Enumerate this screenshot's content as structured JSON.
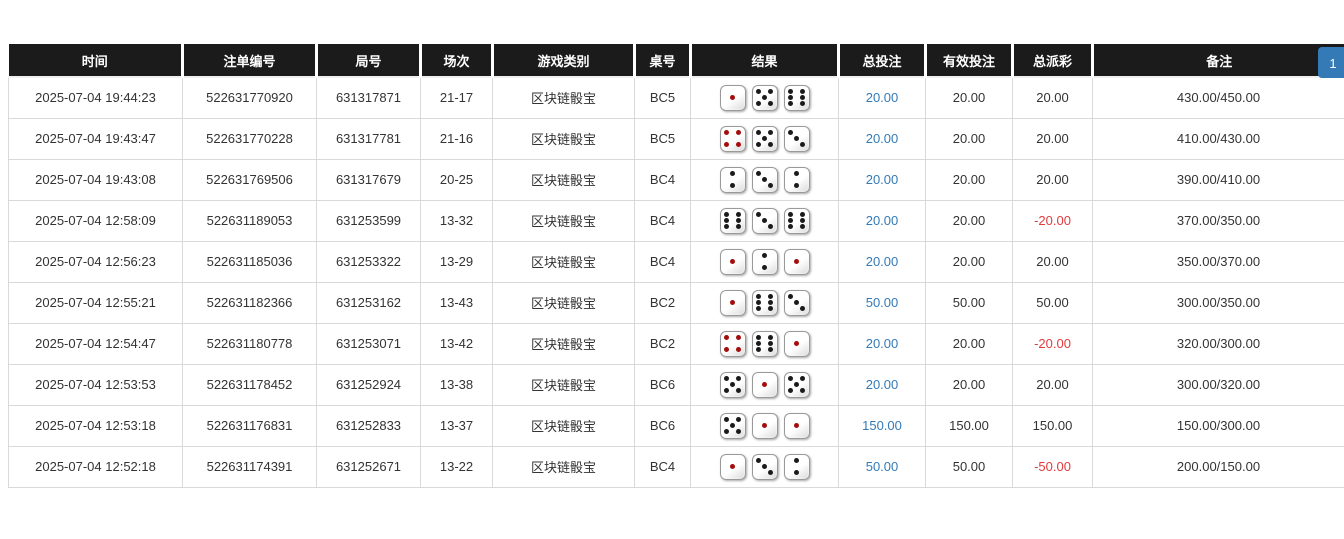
{
  "pagination": {
    "current_page": "1"
  },
  "colors": {
    "header_bg": "#1b1b1b",
    "bet_link_blue": "#337ab7",
    "negative_red": "#e23b3e",
    "dice_red_pip": "#a50d0d",
    "pagination_blue": "#337ab7"
  },
  "icons": {
    "dice_icons": "dice-face icons, values 1-6, pips red for 1 and 4, black otherwise"
  },
  "table": {
    "headers": {
      "time": "时间",
      "bet_id": "注单编号",
      "round": "局号",
      "session": "场次",
      "game": "游戏类别",
      "table_no": "桌号",
      "result": "结果",
      "total_bet": "总投注",
      "valid_bet": "有效投注",
      "payout": "总派彩",
      "remark": "备注"
    },
    "rows": [
      {
        "time": "2025-07-04 19:44:23",
        "bet_id": "522631770920",
        "round": "631317871",
        "session": "21-17",
        "game": "区块链骰宝",
        "table_no": "BC5",
        "dice": [
          1,
          5,
          6
        ],
        "total_bet": "20.00",
        "valid_bet": "20.00",
        "payout": "20.00",
        "remark": "430.00/450.00"
      },
      {
        "time": "2025-07-04 19:43:47",
        "bet_id": "522631770228",
        "round": "631317781",
        "session": "21-16",
        "game": "区块链骰宝",
        "table_no": "BC5",
        "dice": [
          4,
          5,
          3
        ],
        "total_bet": "20.00",
        "valid_bet": "20.00",
        "payout": "20.00",
        "remark": "410.00/430.00"
      },
      {
        "time": "2025-07-04 19:43:08",
        "bet_id": "522631769506",
        "round": "631317679",
        "session": "20-25",
        "game": "区块链骰宝",
        "table_no": "BC4",
        "dice": [
          2,
          3,
          2
        ],
        "total_bet": "20.00",
        "valid_bet": "20.00",
        "payout": "20.00",
        "remark": "390.00/410.00"
      },
      {
        "time": "2025-07-04 12:58:09",
        "bet_id": "522631189053",
        "round": "631253599",
        "session": "13-32",
        "game": "区块链骰宝",
        "table_no": "BC4",
        "dice": [
          6,
          3,
          6
        ],
        "total_bet": "20.00",
        "valid_bet": "20.00",
        "payout": "-20.00",
        "remark": "370.00/350.00"
      },
      {
        "time": "2025-07-04 12:56:23",
        "bet_id": "522631185036",
        "round": "631253322",
        "session": "13-29",
        "game": "区块链骰宝",
        "table_no": "BC4",
        "dice": [
          1,
          2,
          1
        ],
        "total_bet": "20.00",
        "valid_bet": "20.00",
        "payout": "20.00",
        "remark": "350.00/370.00"
      },
      {
        "time": "2025-07-04 12:55:21",
        "bet_id": "522631182366",
        "round": "631253162",
        "session": "13-43",
        "game": "区块链骰宝",
        "table_no": "BC2",
        "dice": [
          1,
          6,
          3
        ],
        "total_bet": "50.00",
        "valid_bet": "50.00",
        "payout": "50.00",
        "remark": "300.00/350.00"
      },
      {
        "time": "2025-07-04 12:54:47",
        "bet_id": "522631180778",
        "round": "631253071",
        "session": "13-42",
        "game": "区块链骰宝",
        "table_no": "BC2",
        "dice": [
          4,
          6,
          1
        ],
        "total_bet": "20.00",
        "valid_bet": "20.00",
        "payout": "-20.00",
        "remark": "320.00/300.00"
      },
      {
        "time": "2025-07-04 12:53:53",
        "bet_id": "522631178452",
        "round": "631252924",
        "session": "13-38",
        "game": "区块链骰宝",
        "table_no": "BC6",
        "dice": [
          5,
          1,
          5
        ],
        "total_bet": "20.00",
        "valid_bet": "20.00",
        "payout": "20.00",
        "remark": "300.00/320.00"
      },
      {
        "time": "2025-07-04 12:53:18",
        "bet_id": "522631176831",
        "round": "631252833",
        "session": "13-37",
        "game": "区块链骰宝",
        "table_no": "BC6",
        "dice": [
          5,
          1,
          1
        ],
        "total_bet": "150.00",
        "valid_bet": "150.00",
        "payout": "150.00",
        "remark": "150.00/300.00"
      },
      {
        "time": "2025-07-04 12:52:18",
        "bet_id": "522631174391",
        "round": "631252671",
        "session": "13-22",
        "game": "区块链骰宝",
        "table_no": "BC4",
        "dice": [
          1,
          3,
          2
        ],
        "total_bet": "50.00",
        "valid_bet": "50.00",
        "payout": "-50.00",
        "remark": "200.00/150.00"
      }
    ]
  }
}
